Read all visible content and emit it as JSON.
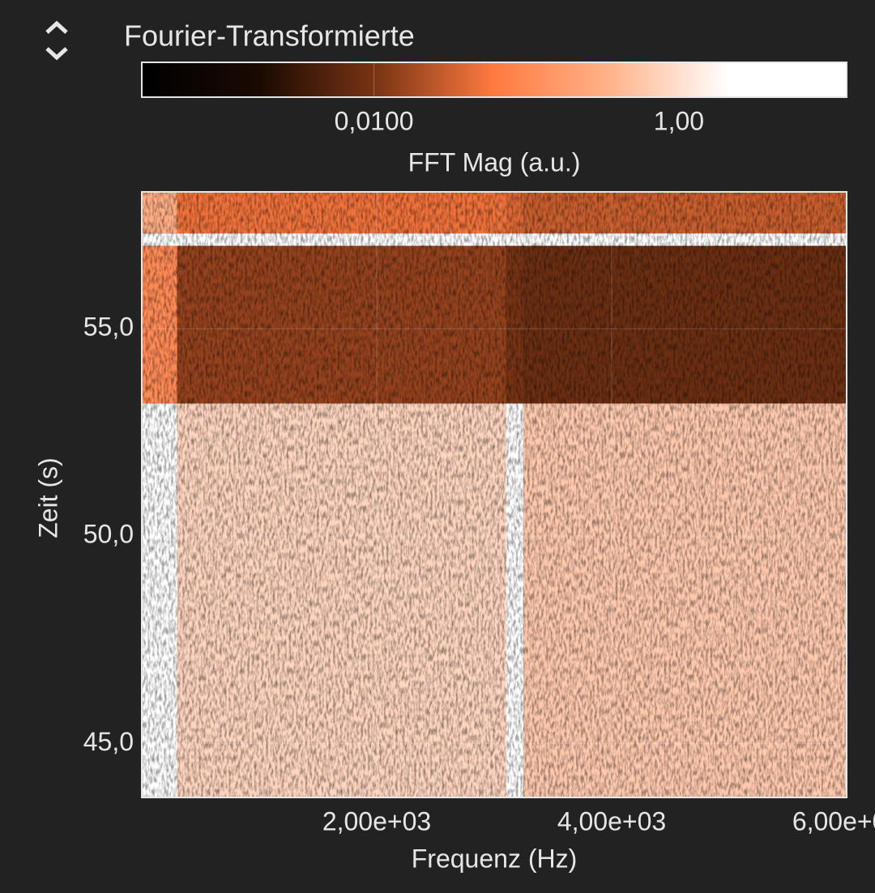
{
  "header": {
    "title": "Fourier-Transformierte"
  },
  "chart_data": {
    "type": "heatmap",
    "colorbar": {
      "label": "FFT Mag (a.u.)",
      "lim": [
        0.0003,
        12.6
      ],
      "log": true,
      "ticks": [
        {
          "value": 0.01,
          "label": "0,0100"
        },
        {
          "value": 1,
          "label": "1,00"
        }
      ],
      "colormap": [
        "#000000",
        "#1a0a02",
        "#7a3414",
        "#ff7a40",
        "#ffb48c",
        "#ffffff",
        "#ffffff"
      ]
    },
    "x_label": "Frequenz (Hz)",
    "y_label": "Zeit (s)",
    "xlim": [
      0,
      6000
    ],
    "ylim": [
      43.7,
      58.3
    ],
    "xticks": [
      {
        "value": 2000,
        "label": "2,00e+03"
      },
      {
        "value": 4000,
        "label": "4,00e+03"
      },
      {
        "value": 6000,
        "label": "6,00e+03"
      }
    ],
    "yticks": [
      {
        "value": 45,
        "label": "45,0"
      },
      {
        "value": 50,
        "label": "50,0"
      },
      {
        "value": 55,
        "label": "55,0"
      }
    ],
    "x_edges": [
      0,
      300,
      3100,
      3250,
      6000
    ],
    "y_edges": [
      43.7,
      53.2,
      57.0,
      57.3,
      58.3
    ],
    "z": [
      [
        5,
        0.8,
        6,
        0.6
      ],
      [
        0.1,
        0.015,
        0.01,
        0.008
      ],
      [
        6,
        4,
        4,
        4
      ],
      [
        0.3,
        0.05,
        0.04,
        0.03
      ]
    ],
    "grid": true
  }
}
